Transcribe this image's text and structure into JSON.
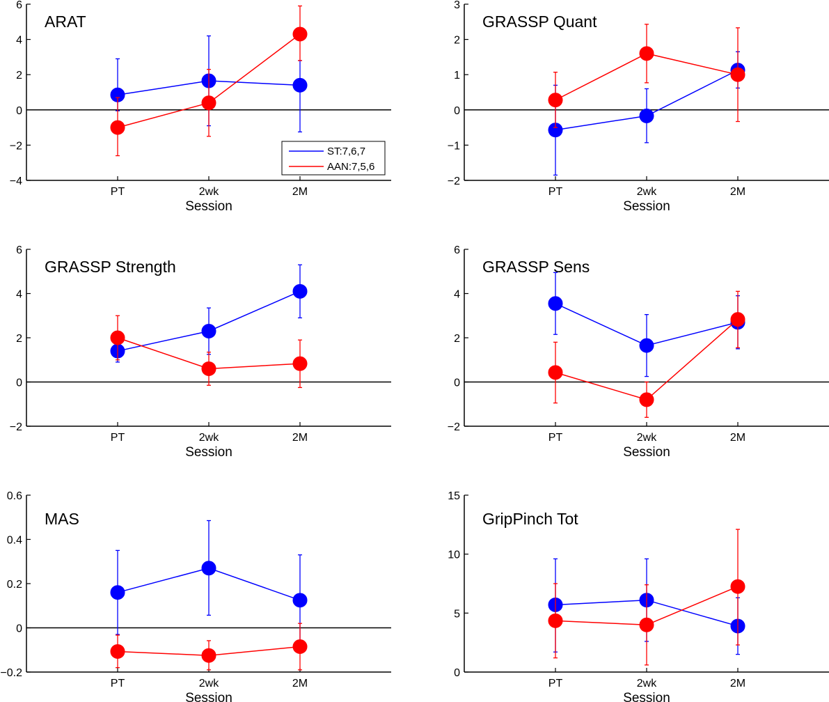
{
  "figure": {
    "colors": {
      "ST": "#0000ff",
      "AAN": "#ff0000",
      "axis": "#000000",
      "zero_line": "#000000"
    },
    "legend": {
      "entries": [
        "ST:7,6,7",
        "AAN:7,5,6"
      ],
      "location": "bottom-right of first panel"
    }
  },
  "chart_data": [
    {
      "type": "line",
      "title": "ARAT",
      "xlabel": "Session",
      "ylabel": "",
      "categories": [
        "PT",
        "2wk",
        "2M"
      ],
      "ylim": [
        -4,
        6
      ],
      "yticks": [
        -4,
        -2,
        0,
        2,
        4,
        6
      ],
      "ytick_labels": [
        "−4",
        "−2",
        "0",
        "2",
        "4",
        "6"
      ],
      "series": [
        {
          "name": "ST:7,6,7",
          "values": [
            0.85,
            1.65,
            1.4
          ],
          "err_low": [
            -0.05,
            -0.9,
            -1.25
          ],
          "err_high": [
            2.9,
            4.2,
            2.8
          ]
        },
        {
          "name": "AAN:7,5,6",
          "values": [
            -1.0,
            0.4,
            4.3
          ],
          "err_low": [
            -2.6,
            -1.5,
            2.8
          ],
          "err_high": [
            0.7,
            2.3,
            5.9
          ]
        }
      ]
    },
    {
      "type": "line",
      "title": "GRASSP Quant",
      "xlabel": "Session",
      "ylabel": "",
      "categories": [
        "PT",
        "2wk",
        "2M"
      ],
      "ylim": [
        -2,
        3
      ],
      "yticks": [
        -2,
        -1,
        0,
        1,
        2,
        3
      ],
      "ytick_labels": [
        "−2",
        "−1",
        "0",
        "1",
        "2",
        "3"
      ],
      "series": [
        {
          "name": "ST:7,6,7",
          "values": [
            -0.57,
            -0.17,
            1.13
          ],
          "err_low": [
            -1.85,
            -0.93,
            0.62
          ],
          "err_high": [
            0.7,
            0.6,
            1.65
          ]
        },
        {
          "name": "AAN:7,5,6",
          "values": [
            0.28,
            1.6,
            1.0
          ],
          "err_low": [
            -0.5,
            0.77,
            -0.33
          ],
          "err_high": [
            1.07,
            2.43,
            2.33
          ]
        }
      ]
    },
    {
      "type": "line",
      "title": "GRASSP Strength",
      "xlabel": "Session",
      "ylabel": "",
      "categories": [
        "PT",
        "2wk",
        "2M"
      ],
      "ylim": [
        -2,
        6
      ],
      "yticks": [
        -2,
        0,
        2,
        4,
        6
      ],
      "ytick_labels": [
        "−2",
        "0",
        "2",
        "4",
        "6"
      ],
      "series": [
        {
          "name": "ST:7,6,7",
          "values": [
            1.4,
            2.3,
            4.1
          ],
          "err_low": [
            0.9,
            1.25,
            2.9
          ],
          "err_high": [
            1.9,
            3.35,
            5.3
          ]
        },
        {
          "name": "AAN:7,5,6",
          "values": [
            2.0,
            0.6,
            0.83
          ],
          "err_low": [
            1.0,
            -0.15,
            -0.25
          ],
          "err_high": [
            3.0,
            1.35,
            1.9
          ]
        }
      ]
    },
    {
      "type": "line",
      "title": "GRASSP Sens",
      "xlabel": "Session",
      "ylabel": "",
      "categories": [
        "PT",
        "2wk",
        "2M"
      ],
      "ylim": [
        -2,
        6
      ],
      "yticks": [
        -2,
        0,
        2,
        4,
        6
      ],
      "ytick_labels": [
        "−2",
        "0",
        "2",
        "4",
        "6"
      ],
      "series": [
        {
          "name": "ST:7,6,7",
          "values": [
            3.55,
            1.65,
            2.7
          ],
          "err_low": [
            2.15,
            0.25,
            1.5
          ],
          "err_high": [
            4.95,
            3.05,
            3.9
          ]
        },
        {
          "name": "AAN:7,5,6",
          "values": [
            0.43,
            -0.8,
            2.83
          ],
          "err_low": [
            -0.95,
            -1.6,
            1.55
          ],
          "err_high": [
            1.8,
            0.0,
            4.1
          ]
        }
      ]
    },
    {
      "type": "line",
      "title": "MAS",
      "xlabel": "Session",
      "ylabel": "",
      "categories": [
        "PT",
        "2wk",
        "2M"
      ],
      "ylim": [
        -0.2,
        0.6
      ],
      "yticks": [
        -0.2,
        0,
        0.2,
        0.4,
        0.6
      ],
      "ytick_labels": [
        "−0.2",
        "0",
        "0.2",
        "0.4",
        "0.6"
      ],
      "series": [
        {
          "name": "ST:7,6,7",
          "values": [
            0.16,
            0.27,
            0.125
          ],
          "err_low": [
            -0.03,
            0.057,
            -0.08
          ],
          "err_high": [
            0.35,
            0.485,
            0.33
          ]
        },
        {
          "name": "AAN:7,5,6",
          "values": [
            -0.107,
            -0.125,
            -0.085
          ],
          "err_low": [
            -0.18,
            -0.19,
            -0.19
          ],
          "err_high": [
            -0.033,
            -0.058,
            0.02
          ]
        }
      ]
    },
    {
      "type": "line",
      "title": "GripPinch Tot",
      "xlabel": "Session",
      "ylabel": "",
      "categories": [
        "PT",
        "2wk",
        "2M"
      ],
      "ylim": [
        0,
        15
      ],
      "yticks": [
        0,
        5,
        10,
        15
      ],
      "ytick_labels": [
        "0",
        "5",
        "10",
        "15"
      ],
      "series": [
        {
          "name": "ST:7,6,7",
          "values": [
            5.7,
            6.1,
            3.9
          ],
          "err_low": [
            1.7,
            2.6,
            1.5
          ],
          "err_high": [
            9.6,
            9.6,
            6.3
          ]
        },
        {
          "name": "AAN:7,5,6",
          "values": [
            4.35,
            4.0,
            7.25
          ],
          "err_low": [
            1.2,
            0.6,
            2.3
          ],
          "err_high": [
            7.5,
            7.4,
            12.1
          ]
        }
      ]
    }
  ]
}
